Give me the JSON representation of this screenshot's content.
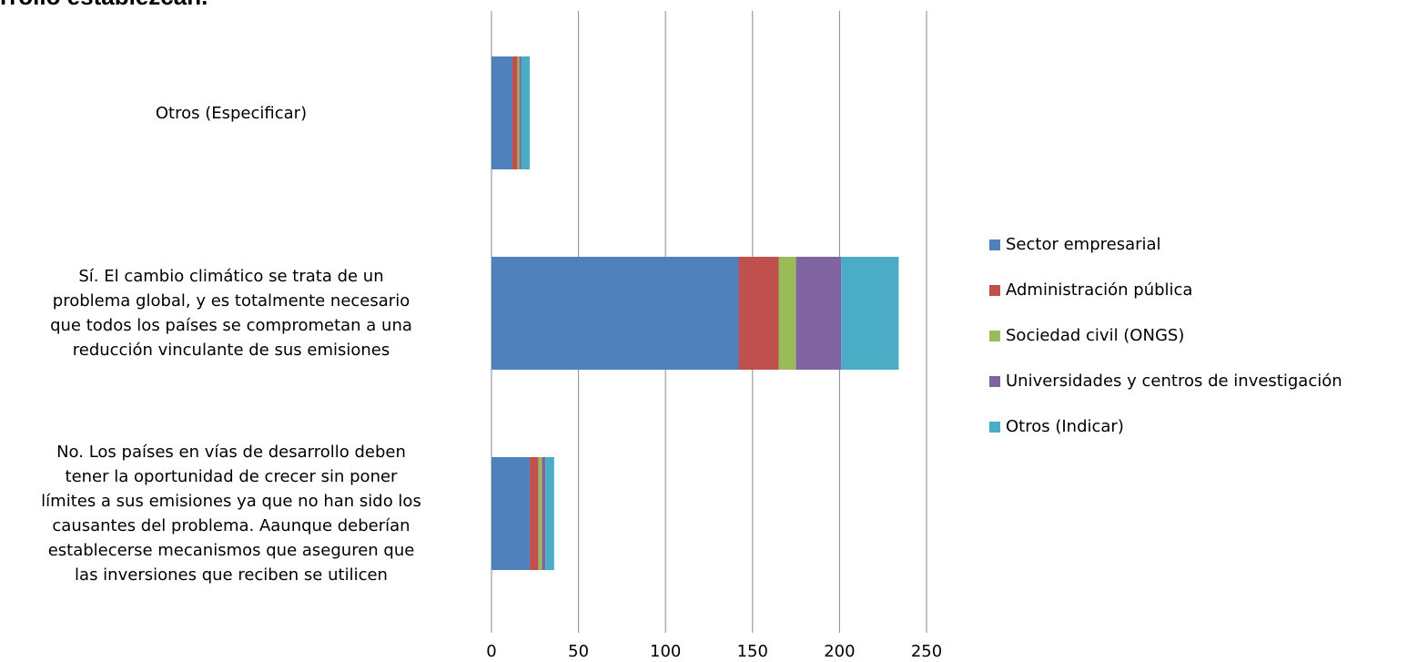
{
  "title_fragment": "rrollo establezcan.",
  "chart_data": {
    "type": "bar",
    "orientation": "horizontal",
    "stacked": true,
    "categories": [
      [
        "Otros (Especificar)"
      ],
      [
        "Sí. El cambio climático se trata de un",
        "problema global, y es totalmente necesario",
        "que todos los países se comprometan a una",
        "reducción vinculante de sus emisiones"
      ],
      [
        "No. Los países en vías de desarrollo deben",
        "tener la oportunidad de crecer sin poner",
        "límites a sus emisiones ya que no han sido los",
        "causantes del problema. Aaunque deberían",
        "establecerse mecanismos que aseguren que",
        "las inversiones que reciben se utilicen"
      ]
    ],
    "series": [
      {
        "name": "Sector empresarial",
        "color": "#4F81BD",
        "values": [
          12,
          142,
          22
        ]
      },
      {
        "name": "Administración pública",
        "color": "#C0504D",
        "values": [
          3,
          23,
          5
        ]
      },
      {
        "name": "Sociedad civil (ONGS)",
        "color": "#9BBB59",
        "values": [
          1,
          10,
          2
        ]
      },
      {
        "name": "Universidades y centros de investigación",
        "color": "#8064A2",
        "values": [
          1,
          26,
          2
        ]
      },
      {
        "name": "Otros (Indicar)",
        "color": "#4BACC6",
        "values": [
          5,
          33,
          5
        ]
      }
    ],
    "xlim": [
      0,
      250
    ],
    "xticks": [
      0,
      50,
      100,
      150,
      200,
      250
    ],
    "grid": "vertical",
    "legend": "right"
  }
}
